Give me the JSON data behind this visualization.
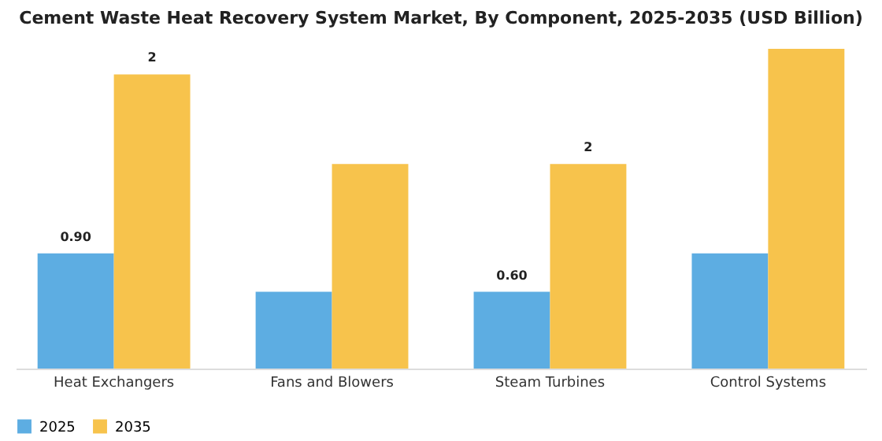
{
  "chart_data": {
    "type": "bar",
    "title": "Cement Waste Heat Recovery System Market, By Component, 2025-2035 (USD Billion)",
    "legend": "bottom",
    "categories": [
      "Heat Exchangers",
      "Fans and Blowers",
      "Steam Turbines",
      "Control Systems"
    ],
    "series": [
      {
        "name": "2025",
        "color": "#5dade2",
        "values": [
          0.9,
          0.6,
          0.6,
          0.9
        ],
        "value_labels": [
          "0.90",
          null,
          "0.60",
          null
        ]
      },
      {
        "name": "2035",
        "color": "#f7c34c",
        "values": [
          2.3,
          1.6,
          1.6,
          2.5
        ],
        "value_labels": [
          "2",
          null,
          "2",
          null
        ]
      }
    ]
  }
}
